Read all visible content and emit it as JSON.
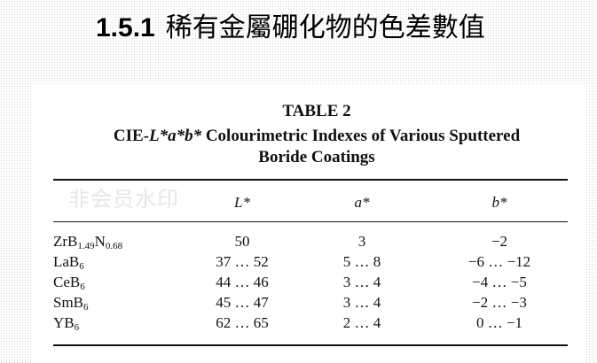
{
  "heading": {
    "number": "1.5.1",
    "title": "稀有金屬硼化物的色差數值"
  },
  "table": {
    "label": "TABLE 2",
    "caption_line1_prefix": "CIE-",
    "caption_line1_italic": "L*a*b*",
    "caption_line1_suffix": " Colourimetric Indexes of Various Sputtered",
    "caption_line2": "Boride Coatings",
    "columns": [
      "",
      "L*",
      "a*",
      "b*"
    ],
    "rows": [
      {
        "name": "ZrB",
        "sub1": "1.49",
        "name2": "N",
        "sub2": "0.68",
        "L": "50",
        "a": "3",
        "b": "−2"
      },
      {
        "name": "LaB",
        "sub1": "6",
        "L": "37 … 52",
        "a": "5 … 8",
        "b": "−6 … −12"
      },
      {
        "name": "CeB",
        "sub1": "6",
        "L": "44 … 46",
        "a": "3 … 4",
        "b": "−4 … −5"
      },
      {
        "name": "SmB",
        "sub1": "6",
        "L": "45 … 47",
        "a": "3 … 4",
        "b": "−2 … −3"
      },
      {
        "name": "YB",
        "sub1": "6",
        "L": "62 … 65",
        "a": "2 … 4",
        "b": "0 … −1"
      }
    ]
  },
  "watermark": "非会员水印"
}
